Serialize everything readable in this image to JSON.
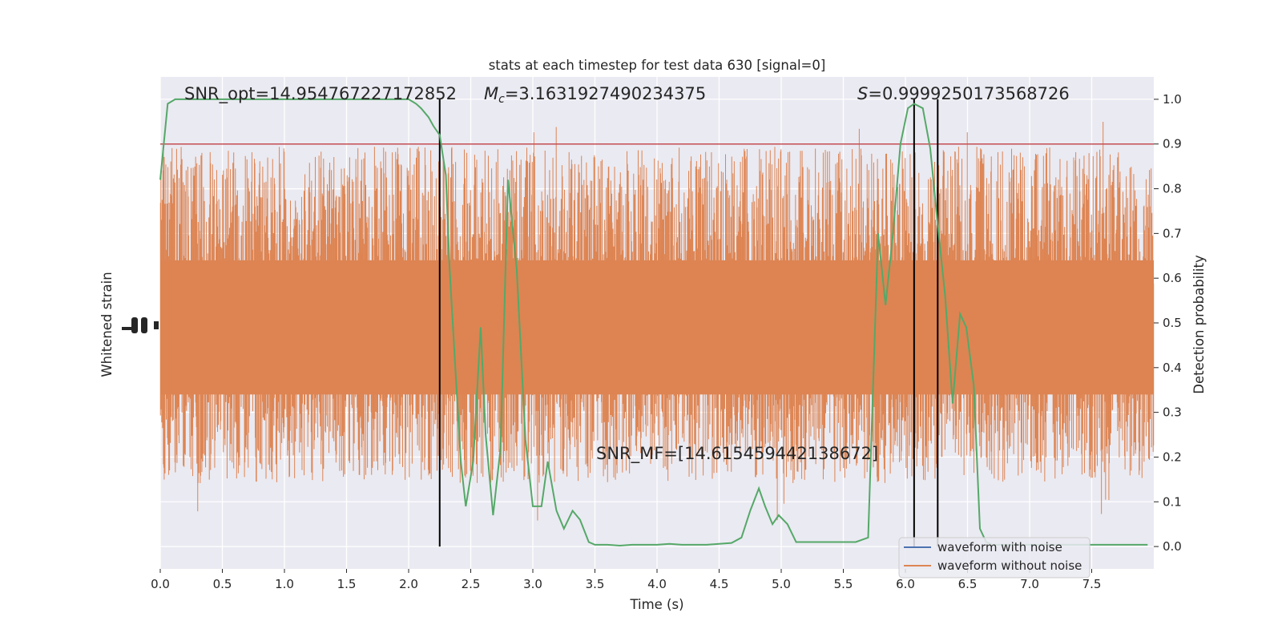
{
  "chart_data": {
    "type": "line",
    "title": "stats at each timestep for test data 630 [signal=0]",
    "xlabel": "Time (s)",
    "ylabel_left": "Whitened strain",
    "ylabel_right": "Detection probability",
    "xlim": [
      0,
      8
    ],
    "ylim_right": [
      -0.05,
      1.05
    ],
    "x_ticks": [
      "0.0",
      "0.5",
      "1.0",
      "1.5",
      "2.0",
      "2.5",
      "3.0",
      "3.5",
      "4.0",
      "4.5",
      "5.0",
      "5.5",
      "6.0",
      "6.5",
      "7.0",
      "7.5"
    ],
    "y_ticks_right": [
      "0.0",
      "0.1",
      "0.2",
      "0.3",
      "0.4",
      "0.5",
      "0.6",
      "0.7",
      "0.8",
      "0.9",
      "1.0"
    ],
    "grid": true,
    "threshold": 0.9,
    "vlines": [
      2.25,
      6.07,
      6.26
    ],
    "annotations": {
      "snr_opt": "SNR_opt=14.954767227172852",
      "mc_symbol": "M",
      "mc_sub": "c",
      "mc_value": "=3.1631927490234375",
      "s_symbol": "S",
      "s_value": "=0.9999250173568726",
      "snr_mf": "SNR_MF=[14.615459442138672]"
    },
    "legend": {
      "placement": "lower-right",
      "entries": [
        "waveform with noise",
        "waveform without noise"
      ]
    },
    "colors": {
      "waveform_with_noise": "#4c72b0",
      "waveform_without_noise": "#dd8452",
      "probability": "#55a868",
      "threshold": "#c44e52",
      "vlines": "#000000",
      "plot_bg": "#eaeaf2",
      "grid": "#ffffff"
    },
    "series": [
      {
        "name": "Detection probability",
        "x": [
          0.0,
          0.06,
          0.12,
          0.2,
          0.3,
          0.4,
          0.5,
          0.6,
          0.8,
          1.0,
          1.2,
          1.4,
          1.6,
          1.8,
          1.9,
          2.0,
          2.06,
          2.1,
          2.16,
          2.2,
          2.25,
          2.3,
          2.33,
          2.38,
          2.42,
          2.46,
          2.52,
          2.58,
          2.62,
          2.68,
          2.74,
          2.8,
          2.87,
          2.94,
          3.0,
          3.07,
          3.12,
          3.19,
          3.25,
          3.32,
          3.38,
          3.45,
          3.5,
          3.6,
          3.7,
          3.8,
          3.9,
          4.0,
          4.1,
          4.2,
          4.3,
          4.4,
          4.5,
          4.6,
          4.68,
          4.75,
          4.82,
          4.87,
          4.93,
          4.98,
          5.05,
          5.12,
          5.2,
          5.3,
          5.4,
          5.5,
          5.6,
          5.7,
          5.78,
          5.84,
          5.9,
          5.96,
          6.02,
          6.07,
          6.14,
          6.2,
          6.26,
          6.32,
          6.38,
          6.44,
          6.49,
          6.55,
          6.6,
          6.65,
          6.7,
          6.8,
          6.9,
          7.0,
          7.2,
          7.4,
          7.6,
          7.8,
          7.95
        ],
        "values": [
          0.82,
          0.99,
          1.0,
          1.0,
          1.0,
          1.0,
          1.0,
          1.0,
          1.0,
          1.0,
          1.0,
          1.0,
          1.0,
          1.0,
          1.0,
          1.0,
          0.99,
          0.98,
          0.96,
          0.94,
          0.92,
          0.83,
          0.62,
          0.38,
          0.19,
          0.09,
          0.19,
          0.49,
          0.25,
          0.07,
          0.22,
          0.82,
          0.62,
          0.24,
          0.09,
          0.09,
          0.19,
          0.08,
          0.04,
          0.08,
          0.06,
          0.01,
          0.004,
          0.004,
          0.002,
          0.004,
          0.004,
          0.004,
          0.006,
          0.004,
          0.004,
          0.004,
          0.006,
          0.008,
          0.02,
          0.08,
          0.13,
          0.09,
          0.05,
          0.07,
          0.05,
          0.01,
          0.01,
          0.01,
          0.01,
          0.01,
          0.01,
          0.02,
          0.7,
          0.54,
          0.7,
          0.9,
          0.98,
          0.99,
          0.98,
          0.89,
          0.72,
          0.56,
          0.32,
          0.52,
          0.49,
          0.36,
          0.04,
          0.01,
          0.004,
          0.004,
          0.004,
          0.004,
          0.004,
          0.004,
          0.004,
          0.004,
          0.004
        ]
      }
    ]
  }
}
